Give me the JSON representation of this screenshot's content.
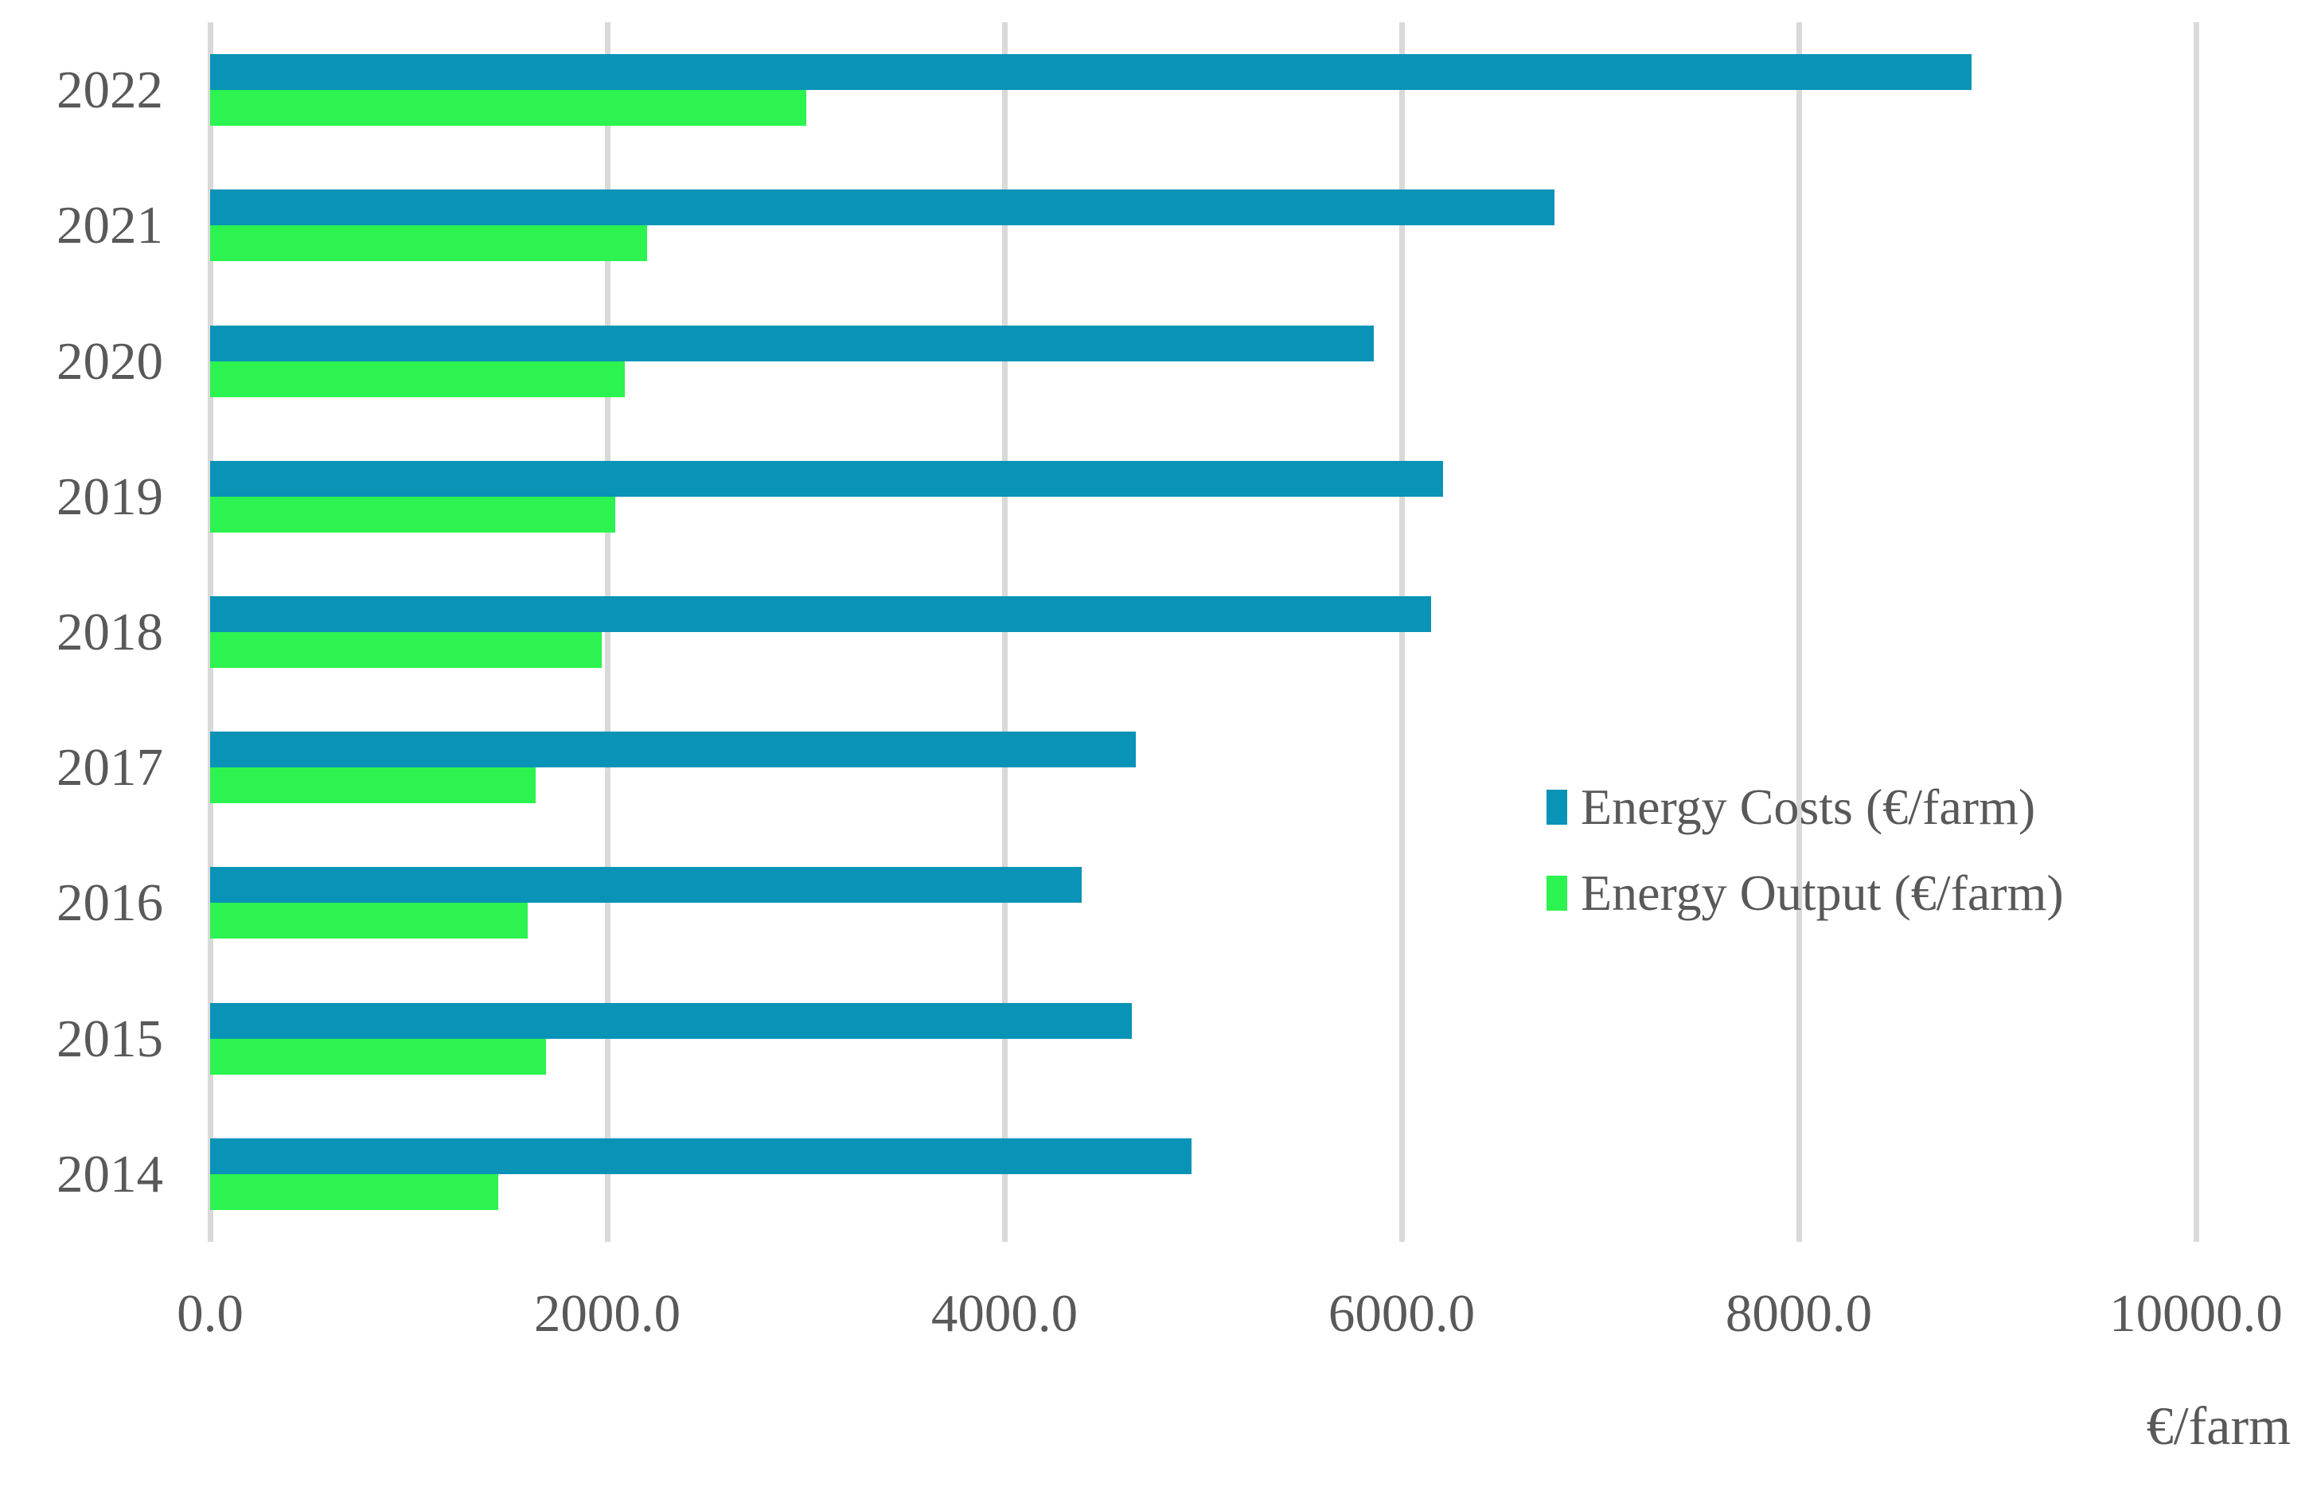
{
  "chart_data": {
    "type": "bar",
    "orientation": "horizontal",
    "title": "",
    "xlabel": "€/farm",
    "ylabel": "",
    "categories": [
      "2022",
      "2021",
      "2020",
      "2019",
      "2018",
      "2017",
      "2016",
      "2015",
      "2014"
    ],
    "series": [
      {
        "name": "Energy Costs (€/farm)",
        "color": "#0993B7",
        "values": [
          8870,
          6770,
          5860,
          6210,
          6150,
          4660,
          4390,
          4640,
          4940
        ]
      },
      {
        "name": "Energy Output (€/farm)",
        "color": "#2CF34F",
        "values": [
          3000,
          2200,
          2090,
          2040,
          1970,
          1640,
          1600,
          1690,
          1450
        ]
      }
    ],
    "xlim": [
      0,
      10000
    ],
    "xticks": [
      0,
      2000,
      4000,
      6000,
      8000,
      10000
    ],
    "xtick_labels": [
      "0.0",
      "2000.0",
      "4000.0",
      "6000.0",
      "8000.0",
      "10000.0"
    ],
    "grid": "vertical-only",
    "gridline_color": "#D9D9D9",
    "text_color": "#595959",
    "background_color": "#FFFFFF",
    "legend_position": "center-right"
  }
}
